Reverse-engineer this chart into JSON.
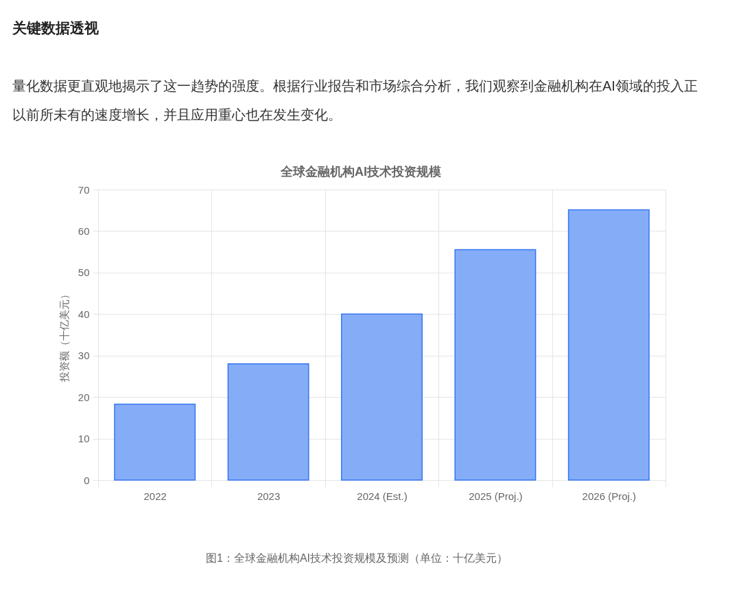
{
  "chart_data": {
    "type": "bar",
    "title": "全球金融机构AI技术投资规模",
    "ylabel": "投资额（十亿美元）",
    "categories": [
      "2022",
      "2023",
      "2024 (Est.)",
      "2025 (Proj.)",
      "2026 (Proj.)"
    ],
    "values": [
      18.3,
      28,
      40,
      55.5,
      65.1
    ],
    "color": "#85adf7",
    "ylim": [
      0,
      70
    ],
    "yticks": [
      0,
      10,
      20,
      30,
      40,
      50,
      60,
      70
    ],
    "grid": true,
    "annotations": [
      "关键数据透视",
      "量化数据更直观地揭示了这一趋势的强度。根据行业报告和市场综合分析，我们观察到金融机构在AI领域的投入正以前所未有的速度增长，并且应用重心也在发生变化。",
      "图1：全球金融机构AI技术投资规模及预测（单位：十亿美元）"
    ]
  }
}
